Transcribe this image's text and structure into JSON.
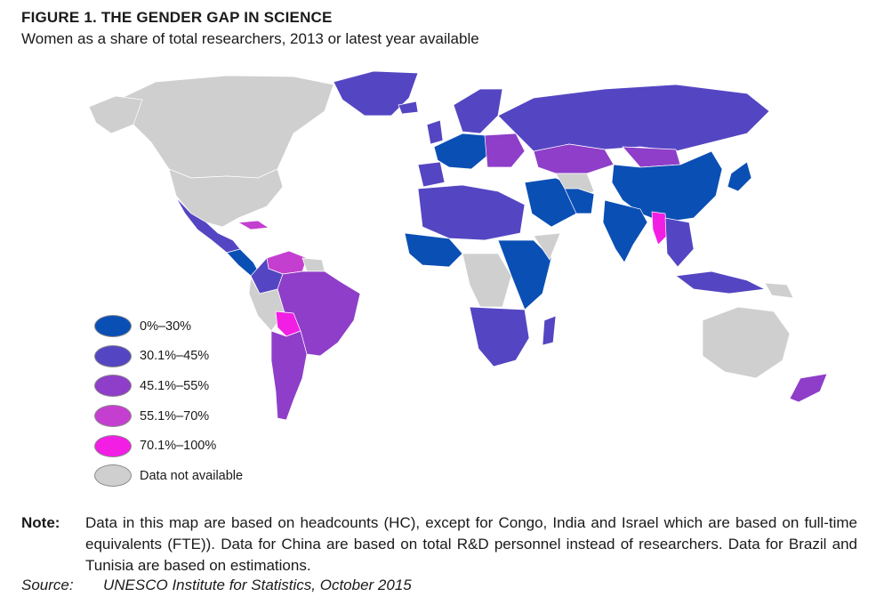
{
  "figure": {
    "title": "FIGURE 1.  THE GENDER GAP IN SCIENCE",
    "subtitle": "Women as a share of total researchers, 2013 or latest year available"
  },
  "palette": {
    "band_0_30": "#0a4fb4",
    "band_30_45": "#5446c2",
    "band_45_55": "#8e3ec8",
    "band_55_70": "#c43fcf",
    "band_70_100": "#f21ee4",
    "not_available": "#cfcfcf"
  },
  "legend": {
    "items": [
      {
        "label": "0%–30%",
        "color": "#0a4fb4"
      },
      {
        "label": "30.1%–45%",
        "color": "#5446c2"
      },
      {
        "label": "45.1%–55%",
        "color": "#8e3ec8"
      },
      {
        "label": "55.1%–70%",
        "color": "#c43fcf"
      },
      {
        "label": "70.1%–100%",
        "color": "#f21ee4"
      },
      {
        "label": "Data not available",
        "color": "#cfcfcf"
      }
    ]
  },
  "note": {
    "label": "Note:",
    "text": "Data in this map are based on headcounts (HC), except for Congo, India and Israel which are based on full-time equivalents (FTE)). Data for China are based on total R&D personnel instead of researchers. Data for Brazil and Tunisia are based on estimations."
  },
  "source": {
    "label": "Source:",
    "text": "UNESCO Institute for Statistics, October 2015"
  }
}
